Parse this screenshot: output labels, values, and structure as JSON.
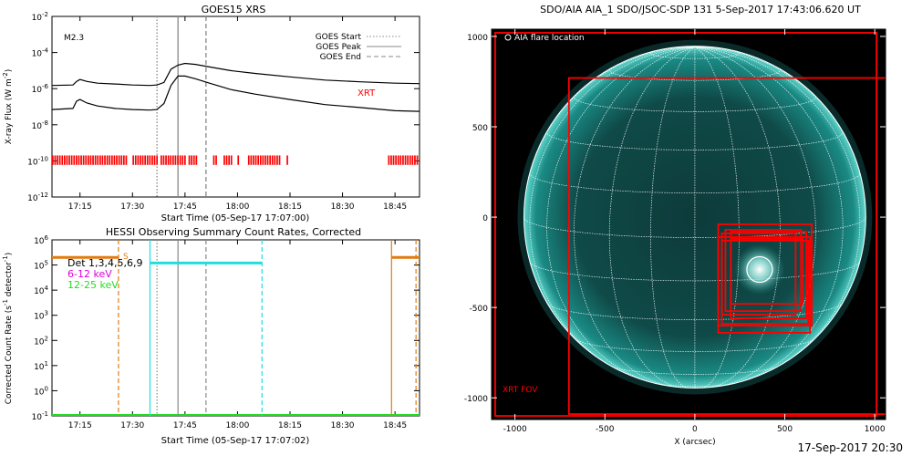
{
  "colors": {
    "xrt_red": "#ff0000",
    "rhessi_orange": "#e07b10",
    "rhessi_cyan": "#22dddd",
    "band_6_12": "#dd00dd",
    "band_12_25": "#22dd22",
    "sun_teal": "#19a09a",
    "grid_white": "#ffffff"
  },
  "footer_timestamp": "17-Sep-2017 20:30",
  "chart_data": [
    {
      "type": "line",
      "title": "GOES15 XRS",
      "xlabel": "Start Time (05-Sep-17 17:07:00)",
      "ylabel": "X-ray Flux (W m",
      "ylabel_unit_exp": "-2",
      "ylabel_close": ")",
      "yscale": "log",
      "xlim": [
        "17:07",
        "18:52"
      ],
      "ylim": [
        1e-12,
        0.01
      ],
      "x_ticks": [
        "17:15",
        "17:30",
        "17:45",
        "18:00",
        "18:15",
        "18:30",
        "18:45"
      ],
      "y_ticks": [
        {
          "base": "10",
          "exp": "-12"
        },
        {
          "base": "10",
          "exp": "-10"
        },
        {
          "base": "10",
          "exp": "-8"
        },
        {
          "base": "10",
          "exp": "-6"
        },
        {
          "base": "10",
          "exp": "-4"
        },
        {
          "base": "10",
          "exp": "-2"
        }
      ],
      "flare_class": "M2.3",
      "xrt_label": "XRT",
      "legend": {
        "position": "top-right",
        "entries": [
          {
            "label": "GOES Start",
            "style": "dotted"
          },
          {
            "label": "GOES Peak",
            "style": "solid"
          },
          {
            "label": "GOES End",
            "style": "dashed"
          }
        ]
      },
      "markers": {
        "start": "17:37",
        "peak": "17:43",
        "end": "17:51"
      },
      "series": [
        {
          "band": "long",
          "x": [
            "17:07",
            "17:13",
            "17:14",
            "17:15",
            "17:17",
            "17:20",
            "17:25",
            "17:30",
            "17:35",
            "17:37",
            "17:39",
            "17:41",
            "17:43",
            "17:45",
            "17:48",
            "17:52",
            "17:58",
            "18:05",
            "18:15",
            "18:25",
            "18:35",
            "18:45",
            "18:52"
          ],
          "y": [
            1.5e-06,
            1.6e-06,
            2.5e-06,
            3.2e-06,
            2.5e-06,
            2e-06,
            1.8e-06,
            1.6e-06,
            1.5e-06,
            1.6e-06,
            2.2e-06,
            1.2e-05,
            2e-05,
            2.5e-05,
            2.2e-05,
            1.6e-05,
            1e-05,
            7e-06,
            4.5e-06,
            3e-06,
            2.4e-06,
            2e-06,
            1.9e-06
          ]
        },
        {
          "band": "short",
          "x": [
            "17:07",
            "17:13",
            "17:14",
            "17:15",
            "17:17",
            "17:20",
            "17:25",
            "17:30",
            "17:35",
            "17:37",
            "17:39",
            "17:41",
            "17:43",
            "17:45",
            "17:48",
            "17:52",
            "17:58",
            "18:05",
            "18:15",
            "18:25",
            "18:35",
            "18:45",
            "18:52"
          ],
          "y": [
            7e-08,
            8e-08,
            2e-07,
            2.5e-07,
            1.6e-07,
            1.1e-07,
            8e-08,
            7e-08,
            6.5e-08,
            7e-08,
            1.5e-07,
            1.5e-06,
            5e-06,
            5e-06,
            3.5e-06,
            2e-06,
            9e-07,
            5e-07,
            2.5e-07,
            1.3e-07,
            9e-08,
            6e-08,
            5.5e-08
          ]
        }
      ],
      "xrt_coverage": [
        [
          "17:07",
          "17:29"
        ],
        [
          "17:30",
          "17:38"
        ],
        [
          "17:38",
          "17:46"
        ],
        [
          "17:46",
          "17:49"
        ],
        [
          "17:53",
          "17:55"
        ],
        [
          "17:56",
          "17:59"
        ],
        [
          "18:00",
          "18:01"
        ],
        [
          "18:03",
          "18:13"
        ],
        [
          "18:14",
          "18:15"
        ],
        [
          "18:43",
          "18:52"
        ]
      ]
    },
    {
      "type": "line",
      "title": "HESSI Observing Summary Count Rates, Corrected",
      "xlabel": "Start Time (05-Sep-17 17:07:02)",
      "ylabel": "Corrected Count Rate (s",
      "ylabel_unit_exp": "-1",
      "ylabel_mid": " detector",
      "ylabel_close": ")",
      "yscale": "log",
      "xlim": [
        "17:07",
        "18:52"
      ],
      "ylim": [
        0.1,
        1000000.0
      ],
      "x_ticks": [
        "17:15",
        "17:30",
        "17:45",
        "18:00",
        "18:15",
        "18:30",
        "18:45"
      ],
      "y_ticks": [
        {
          "base": "10",
          "exp": "-1"
        },
        {
          "base": "10",
          "exp": "0"
        },
        {
          "base": "10",
          "exp": "1"
        },
        {
          "base": "10",
          "exp": "2"
        },
        {
          "base": "10",
          "exp": "3"
        },
        {
          "base": "10",
          "exp": "4"
        },
        {
          "base": "10",
          "exp": "5"
        },
        {
          "base": "10",
          "exp": "6"
        }
      ],
      "annotation_s": "S",
      "legend": {
        "position": "top-left",
        "entries": [
          {
            "label": "Det 1,3,4,5,6,9",
            "color": "#000000"
          },
          {
            "label": "6-12 keV",
            "color": "#dd00dd"
          },
          {
            "label": "12-25 keV",
            "color": "#22dd22"
          }
        ]
      },
      "series": [
        {
          "name": "Det 1,3,4,5,6,9",
          "color": "#e07b10",
          "segments": [
            [
              [
                "17:07",
                "17:26"
              ],
              200000.0
            ],
            [
              [
                "18:44",
                "18:52"
              ],
              200000.0
            ]
          ]
        },
        {
          "name": "6-12 keV",
          "color": "#22dddd",
          "segments": [
            [
              [
                "17:35",
                "18:07"
              ],
              120000.0
            ]
          ]
        }
      ],
      "baseline": {
        "color": "#22dd22",
        "value": 0.1
      },
      "vlines": [
        {
          "x": "17:26",
          "style": "dashed",
          "color": "#e07b10"
        },
        {
          "x": "17:35",
          "style": "solid",
          "color": "#22dddd"
        },
        {
          "x": "17:37",
          "style": "dotted",
          "color": "#888888"
        },
        {
          "x": "17:43",
          "style": "solid",
          "color": "#888888"
        },
        {
          "x": "17:51",
          "style": "dashed",
          "color": "#888888"
        },
        {
          "x": "18:07",
          "style": "dashed",
          "color": "#22dddd"
        },
        {
          "x": "18:44",
          "style": "solid",
          "color": "#e07b10"
        },
        {
          "x": "18:51",
          "style": "dashed",
          "color": "#e07b10"
        }
      ]
    },
    {
      "type": "heatmap",
      "title": "SDO/AIA AIA_1 SDO/JSOC-SDP 131  5-Sep-2017 17:43:06.620 UT",
      "xlabel": "X (arcsec)",
      "ylabel": "",
      "xlim": [
        -1130,
        1060
      ],
      "ylim": [
        -1120,
        1040
      ],
      "x_ticks": [
        -1000,
        -500,
        0,
        500,
        1000
      ],
      "y_ticks": [
        -1000,
        -500,
        0,
        500,
        1000
      ],
      "solar_radius_arcsec": 950,
      "flare_location_label": "AIA flare location",
      "flare_location": [
        360,
        -290
      ],
      "fov_label": "XRT FOV",
      "fov_boxes": [
        [
          -1110,
          -1100,
          1010,
          1020
        ],
        [
          -700,
          -1090,
          1100,
          770
        ],
        [
          130,
          -600,
          650,
          -40
        ],
        [
          200,
          -560,
          620,
          -80
        ],
        [
          170,
          -520,
          590,
          -70
        ],
        [
          150,
          -590,
          630,
          -130
        ],
        [
          130,
          -640,
          640,
          -110
        ],
        [
          200,
          -480,
          600,
          -120
        ],
        [
          150,
          -540,
          560,
          -90
        ]
      ]
    }
  ]
}
